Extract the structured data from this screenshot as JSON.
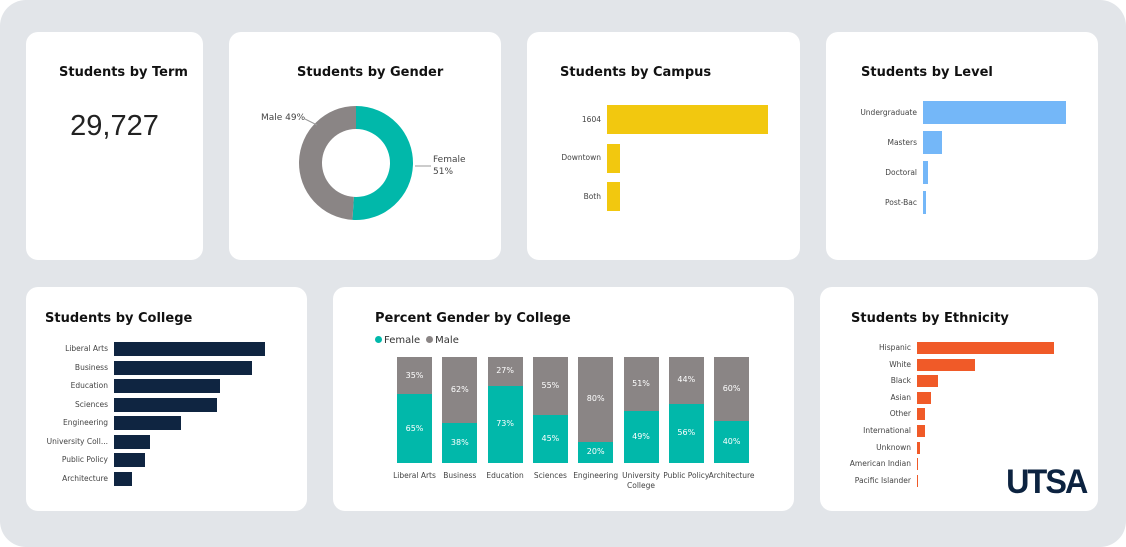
{
  "term": {
    "title": "Students by Term",
    "value": "29,727"
  },
  "gender": {
    "title": "Students by Gender",
    "male_label": "Male 49%",
    "female_label": "Female",
    "female_pct": "51%",
    "chart_data": {
      "type": "pie",
      "categories": [
        "Female",
        "Male"
      ],
      "values": [
        51,
        49
      ],
      "colors": [
        "#01b8aa",
        "#8a8585"
      ]
    }
  },
  "campus": {
    "title": "Students by Campus",
    "chart_data": {
      "type": "bar",
      "orientation": "horizontal",
      "categories": [
        "1604",
        "Downtown",
        "Both"
      ],
      "values": [
        25600,
        2050,
        2050
      ],
      "color": "#f2c80f"
    }
  },
  "level": {
    "title": "Students by Level",
    "chart_data": {
      "type": "bar",
      "orientation": "horizontal",
      "categories": [
        "Undergraduate",
        "Masters",
        "Doctoral",
        "Post-Bac"
      ],
      "values": [
        25000,
        3300,
        870,
        520
      ],
      "color": "#74b7f8"
    }
  },
  "college": {
    "title": "Students by College",
    "chart_data": {
      "type": "bar",
      "orientation": "horizontal",
      "categories": [
        "Liberal Arts",
        "Business",
        "Education",
        "Sciences",
        "Engineering",
        "University Coll...",
        "Public Policy",
        "Architecture"
      ],
      "values": [
        6900,
        6300,
        4850,
        4700,
        3050,
        1650,
        1400,
        820
      ],
      "color": "#0f2541"
    }
  },
  "pct_gender": {
    "title": "Percent Gender by College",
    "chart_data": {
      "type": "bar",
      "stacked": true,
      "categories": [
        "Liberal Arts",
        "Business",
        "Education",
        "Sciences",
        "Engineering",
        "University College",
        "Public Policy",
        "Architecture"
      ],
      "series": [
        {
          "name": "Female",
          "color": "#01b8aa",
          "values": [
            65,
            38,
            73,
            45,
            20,
            49,
            56,
            40
          ]
        },
        {
          "name": "Male",
          "color": "#8a8585",
          "values": [
            35,
            62,
            27,
            55,
            80,
            51,
            44,
            60
          ]
        }
      ],
      "ylim": [
        0,
        100
      ],
      "legend": "top-left"
    }
  },
  "ethnicity": {
    "title": "Students by Ethnicity",
    "logo": "UTSA",
    "chart_data": {
      "type": "bar",
      "orientation": "horizontal",
      "categories": [
        "Hispanic",
        "White",
        "Black",
        "Asian",
        "Other",
        "International",
        "Unknown",
        "American Indian",
        "Pacific Islander"
      ],
      "values": [
        16200,
        6900,
        2500,
        1650,
        950,
        950,
        350,
        120,
        110
      ],
      "color": "#f05a28"
    }
  }
}
